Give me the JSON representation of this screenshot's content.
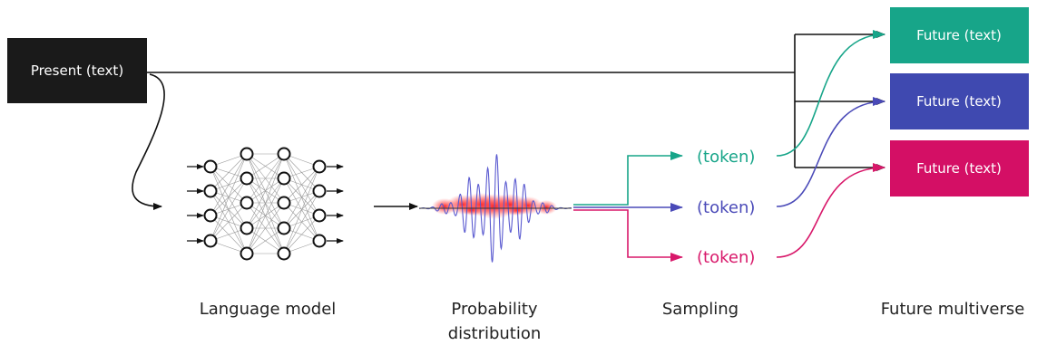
{
  "present": {
    "label": "Present (text)",
    "color": "#1a1a1a"
  },
  "tokens": [
    {
      "label": "(token)",
      "color": "#17a589"
    },
    {
      "label": "(token)",
      "color": "#4a4ab8"
    },
    {
      "label": "(token)",
      "color": "#d8186a"
    }
  ],
  "futures": [
    {
      "label": "Future (text)",
      "color": "#17a589"
    },
    {
      "label": "Future (text)",
      "color": "#3f49b0"
    },
    {
      "label": "Future (text)",
      "color": "#d40f65"
    }
  ],
  "captions": {
    "language_model": "Language model",
    "probability_line1": "Probability",
    "probability_line2": "distribution",
    "sampling": "Sampling",
    "future_multiverse": "Future multiverse"
  }
}
